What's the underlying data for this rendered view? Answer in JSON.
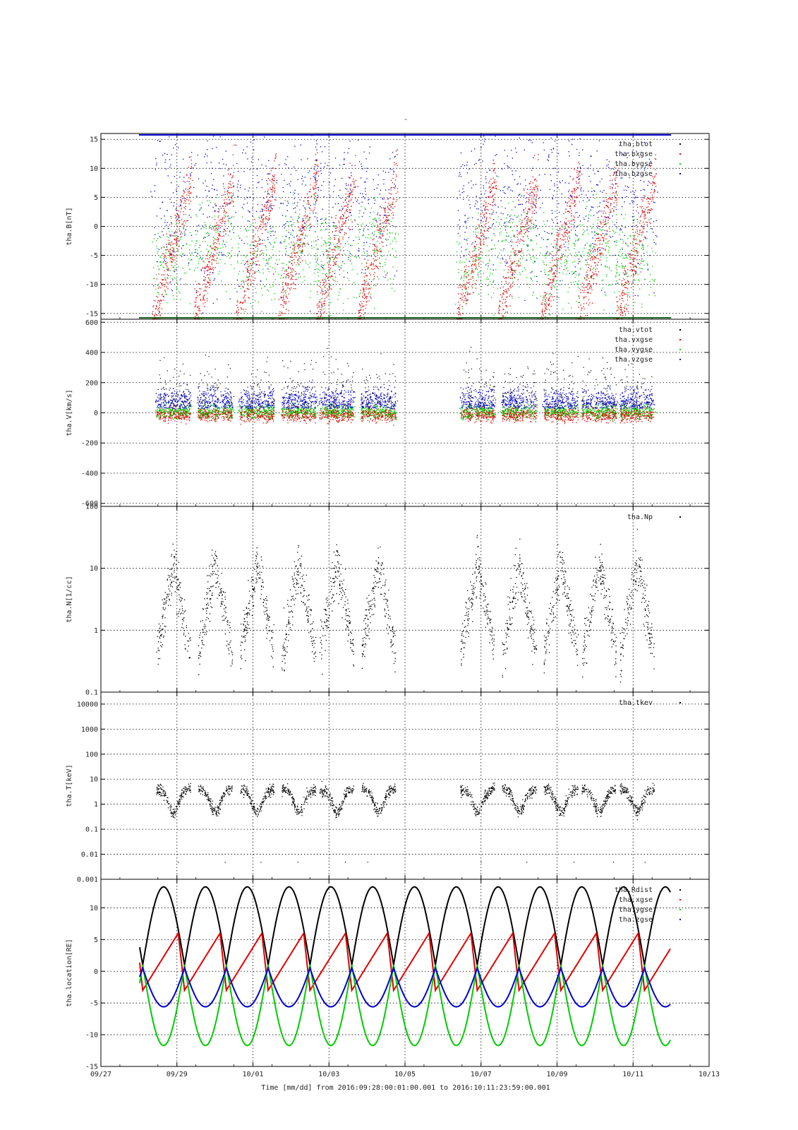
{
  "title": "-",
  "x_axis": {
    "label": "Time [mm/dd]  from 2016:09:28:00:01:00.001  to  2016:10:11:23:59:00.001",
    "range_days": [
      0,
      16
    ],
    "ticks": [
      {
        "day": 0,
        "label": "09/27"
      },
      {
        "day": 2,
        "label": "09/29"
      },
      {
        "day": 4,
        "label": "10/01"
      },
      {
        "day": 6,
        "label": "10/03"
      },
      {
        "day": 8,
        "label": "10/05"
      },
      {
        "day": 10,
        "label": "10/07"
      },
      {
        "day": 12,
        "label": "10/09"
      },
      {
        "day": 14,
        "label": "10/11"
      },
      {
        "day": 16,
        "label": "10/13"
      }
    ]
  },
  "colors": {
    "black": "#000000",
    "red": "#e00000",
    "green": "#00cc00",
    "blue": "#0000cc"
  },
  "chart_data": [
    {
      "type": "scatter",
      "ylabel": "tha.B[nT]",
      "scale": "linear",
      "ylim": [
        -16,
        16
      ],
      "yticks": [
        {
          "v": 15,
          "label": "15"
        },
        {
          "v": 10,
          "label": "10"
        },
        {
          "v": 5,
          "label": "5"
        },
        {
          "v": 0,
          "label": "0"
        },
        {
          "v": -5,
          "label": "-5"
        },
        {
          "v": -10,
          "label": "-10"
        },
        {
          "v": -15,
          "label": "-15"
        }
      ],
      "series": [
        {
          "name": "tha.btot",
          "color": "black"
        },
        {
          "name": "tha.bxgse",
          "color": "red"
        },
        {
          "name": "tha.bygse",
          "color": "green"
        },
        {
          "name": "tha.bzgse",
          "color": "blue"
        }
      ]
    },
    {
      "type": "scatter",
      "ylabel": "tha.V[km/s]",
      "scale": "linear",
      "ylim": [
        -620,
        620
      ],
      "yticks": [
        {
          "v": 600,
          "label": "600"
        },
        {
          "v": 400,
          "label": "400"
        },
        {
          "v": 200,
          "label": "200"
        },
        {
          "v": 0,
          "label": "0"
        },
        {
          "v": -200,
          "label": "-200"
        },
        {
          "v": -400,
          "label": "-400"
        },
        {
          "v": -600,
          "label": "-600"
        }
      ],
      "series": [
        {
          "name": "tha.vtot",
          "color": "black"
        },
        {
          "name": "tha.vxgse",
          "color": "red"
        },
        {
          "name": "tha.vygse",
          "color": "green"
        },
        {
          "name": "tha.vzgse",
          "color": "blue"
        }
      ]
    },
    {
      "type": "scatter",
      "ylabel": "tha.N[1/cc]",
      "scale": "log",
      "ylim": [
        0.1,
        100
      ],
      "yticks": [
        {
          "v": 100,
          "label": "100"
        },
        {
          "v": 10,
          "label": "10"
        },
        {
          "v": 1,
          "label": "1"
        },
        {
          "v": 0.1,
          "label": "0.1"
        }
      ],
      "series": [
        {
          "name": "tha.Np",
          "color": "black"
        }
      ]
    },
    {
      "type": "scatter",
      "ylabel": "tha.T[keV]",
      "scale": "log",
      "ylim": [
        0.001,
        30000
      ],
      "yticks": [
        {
          "v": 10000,
          "label": "10000"
        },
        {
          "v": 1000,
          "label": "1000"
        },
        {
          "v": 100,
          "label": "100"
        },
        {
          "v": 10,
          "label": "10"
        },
        {
          "v": 1,
          "label": "1"
        },
        {
          "v": 0.1,
          "label": "0.1"
        },
        {
          "v": 0.01,
          "label": "0.01"
        },
        {
          "v": 0.001,
          "label": "0.001"
        }
      ],
      "series": [
        {
          "name": "tha.tkev",
          "color": "black"
        }
      ]
    },
    {
      "type": "line",
      "ylabel": "tha.location[RE]",
      "scale": "linear",
      "ylim": [
        -15,
        14.5
      ],
      "yticks": [
        {
          "v": 10,
          "label": "10"
        },
        {
          "v": 5,
          "label": "5"
        },
        {
          "v": 0,
          "label": "0"
        },
        {
          "v": -5,
          "label": "-5"
        },
        {
          "v": -10,
          "label": "-10"
        },
        {
          "v": -15,
          "label": "-15"
        }
      ],
      "series": [
        {
          "name": "tha.Rdist",
          "color": "black"
        },
        {
          "name": "tha.xgse",
          "color": "red"
        },
        {
          "name": "tha.ygse",
          "color": "green"
        },
        {
          "name": "tha.zgse",
          "color": "blue"
        }
      ],
      "orbit": {
        "period_days": 1.1,
        "first_perigee_day": 1.1,
        "span_days": [
          1.02,
          14.98
        ],
        "Rdist": {
          "min": 1.0,
          "max": 13.3
        },
        "xgse": {
          "min": -3.0,
          "max": 6.0
        },
        "ygse": {
          "min": -11.7,
          "max": 1.0
        },
        "zgse": {
          "min": -5.6,
          "max": 0.5
        }
      }
    }
  ]
}
